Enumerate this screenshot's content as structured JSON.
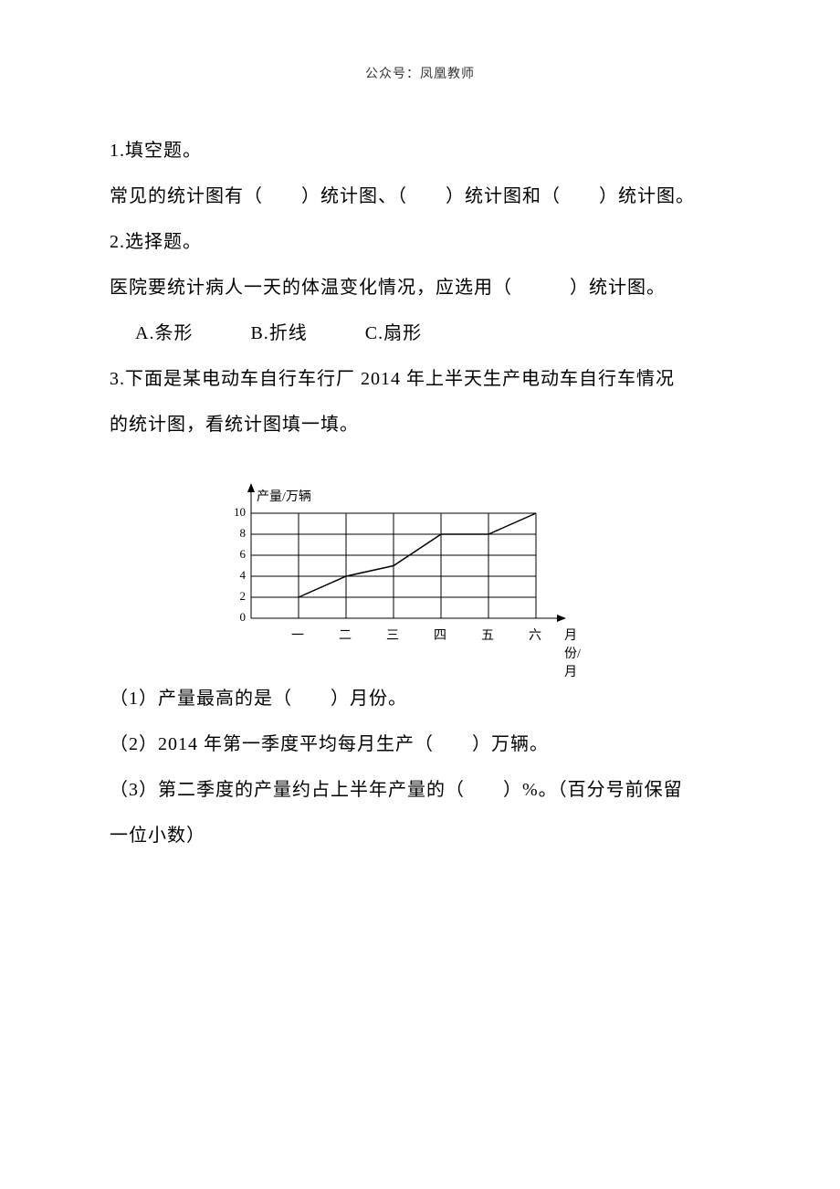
{
  "header": "公众号：凤凰教师",
  "q1": {
    "title": "1.填空题。",
    "text_parts": [
      "常见的统计图有（",
      "）统计图、（",
      "）统计图和（",
      "）统计图。"
    ]
  },
  "q2": {
    "title": "2.选择题。",
    "text_parts": [
      "医院要统计病人一天的体温变化情况，应选用（",
      "）统计图。"
    ],
    "options": {
      "a": "A.条形",
      "b": "B.折线",
      "c": "C.扇形"
    }
  },
  "q3": {
    "title_part1": "3.下面是某电动车自行车行厂 2014 年上半天生产电动车自行车情况",
    "title_part2": "的统计图，看统计图填一填。",
    "sub1_parts": [
      "（1）产量最高的是（",
      "）月份。"
    ],
    "sub2_parts": [
      "（2）2014 年第一季度平均每月生产（",
      "）万辆。"
    ],
    "sub3_parts": [
      "（3）第二季度的产量约占上半年产量的（",
      "）%。（百分号前保留"
    ],
    "sub3_line2": "一位小数）"
  },
  "chart": {
    "type": "line",
    "y_axis_label": "产量/万辆",
    "x_axis_label": "月份/月",
    "y_ticks": [
      "0",
      "2",
      "4",
      "6",
      "8",
      "10"
    ],
    "x_ticks": [
      "一",
      "二",
      "三",
      "四",
      "五",
      "六"
    ],
    "data_values": [
      2,
      4,
      5,
      8,
      8,
      10
    ],
    "grid_origin_x": 45,
    "grid_origin_y": 175,
    "grid_col_width": 52,
    "grid_row_height": 23,
    "line_color": "#000000",
    "grid_color": "#000000",
    "line_width": 1.5,
    "grid_width": 1,
    "arrow_size": 8
  }
}
